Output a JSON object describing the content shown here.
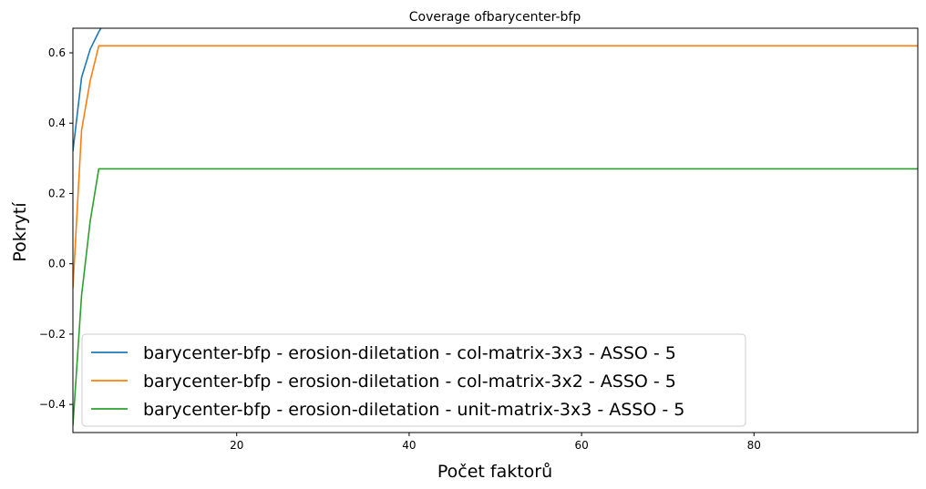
{
  "chart_data": {
    "type": "line",
    "title": "Coverage ofbarycenter-bfp",
    "xlabel": "Počet faktorů",
    "ylabel": "Pokrytí",
    "xlim": [
      1,
      99
    ],
    "ylim": [
      -0.48,
      0.67
    ],
    "xticks": [
      20,
      40,
      60,
      80
    ],
    "yticks": [
      -0.4,
      -0.2,
      0.0,
      0.2,
      0.4,
      0.6
    ],
    "ytick_labels": [
      "−0.4",
      "−0.2",
      "0.0",
      "0.2",
      "0.4",
      "0.6"
    ],
    "grid": false,
    "legend_position": "lower-left",
    "series": [
      {
        "name": "barycenter-bfp - erosion-diletation - col-matrix-3x3 - ASSO - 5",
        "color": "#1f77b4",
        "x": [
          1,
          2,
          3,
          4,
          5
        ],
        "y": [
          0.32,
          0.53,
          0.61,
          0.66,
          0.7
        ]
      },
      {
        "name": "barycenter-bfp - erosion-diletation - col-matrix-3x2 - ASSO - 5",
        "color": "#ff7f0e",
        "x": [
          1,
          2,
          3,
          4,
          99
        ],
        "y": [
          -0.07,
          0.38,
          0.52,
          0.62,
          0.62
        ]
      },
      {
        "name": "barycenter-bfp - erosion-diletation - unit-matrix-3x3 - ASSO - 5",
        "color": "#2ca02c",
        "x": [
          1,
          2,
          3,
          4,
          99
        ],
        "y": [
          -0.46,
          -0.09,
          0.12,
          0.27,
          0.27
        ]
      }
    ]
  }
}
